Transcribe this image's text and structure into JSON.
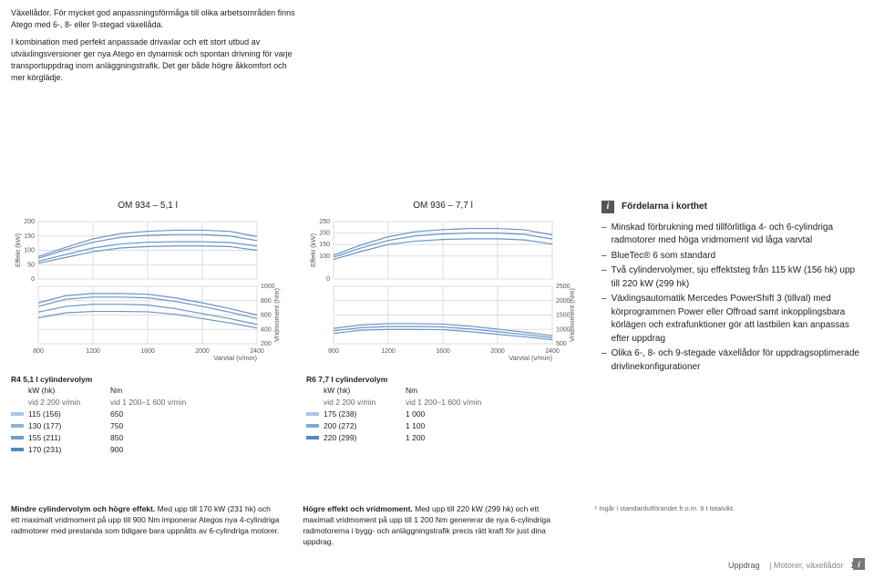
{
  "intro": {
    "para1": "Växellådor. För mycket god anpassningsförmåga till olika arbetsområden finns Atego med 6-, 8- eller 9-stegad växellåda.",
    "para2": "I kombination med perfekt anpassade drivaxlar och ett stort utbud av utväxlingsversioner ger nya Atego en dynamisk och spontan drivning för varje transportuppdrag inom anläggningstrafik. Det ger både högre åkkomfort och mer körglädje."
  },
  "chart1": {
    "title": "OM 934 – 5,1 l",
    "type": "dual-axis-line",
    "y_left_label": "Effekt (kW)",
    "y_right_label": "Vridmoment (Nm)",
    "x_label": "Varvtal (v/min)",
    "background_color": "#ffffff",
    "grid_color": "#dddddd",
    "line_color": "#6894c6",
    "line_width": 1.2,
    "x_ticks": [
      800,
      1200,
      1600,
      2000,
      2400
    ],
    "y_left_ticks": [
      0,
      50,
      100,
      150,
      200
    ],
    "y_left_lim": [
      0,
      200
    ],
    "y_right_ticks": [
      200,
      400,
      600,
      800,
      1000
    ],
    "y_right_lim": [
      200,
      1000
    ],
    "label_fontsize": 7.5,
    "tick_fontsize": 7,
    "power_series": [
      {
        "name": "115",
        "pts": [
          [
            800,
            55
          ],
          [
            1000,
            75
          ],
          [
            1200,
            95
          ],
          [
            1400,
            108
          ],
          [
            1600,
            113
          ],
          [
            1800,
            115
          ],
          [
            2000,
            115
          ],
          [
            2200,
            113
          ],
          [
            2400,
            100
          ]
        ]
      },
      {
        "name": "130",
        "pts": [
          [
            800,
            62
          ],
          [
            1000,
            85
          ],
          [
            1200,
            108
          ],
          [
            1400,
            122
          ],
          [
            1600,
            128
          ],
          [
            1800,
            130
          ],
          [
            2000,
            130
          ],
          [
            2200,
            127
          ],
          [
            2400,
            115
          ]
        ]
      },
      {
        "name": "155",
        "pts": [
          [
            800,
            72
          ],
          [
            1000,
            102
          ],
          [
            1200,
            128
          ],
          [
            1400,
            145
          ],
          [
            1600,
            152
          ],
          [
            1800,
            155
          ],
          [
            2000,
            155
          ],
          [
            2200,
            150
          ],
          [
            2400,
            134
          ]
        ]
      },
      {
        "name": "170",
        "pts": [
          [
            800,
            78
          ],
          [
            1000,
            110
          ],
          [
            1200,
            140
          ],
          [
            1400,
            158
          ],
          [
            1600,
            166
          ],
          [
            1800,
            170
          ],
          [
            2000,
            170
          ],
          [
            2200,
            166
          ],
          [
            2400,
            148
          ]
        ]
      }
    ],
    "torque_series": [
      {
        "name": "115",
        "pts": [
          [
            800,
            560
          ],
          [
            1000,
            630
          ],
          [
            1200,
            650
          ],
          [
            1400,
            650
          ],
          [
            1600,
            645
          ],
          [
            1800,
            610
          ],
          [
            2000,
            550
          ],
          [
            2200,
            490
          ],
          [
            2400,
            420
          ]
        ]
      },
      {
        "name": "130",
        "pts": [
          [
            800,
            640
          ],
          [
            1000,
            720
          ],
          [
            1200,
            750
          ],
          [
            1400,
            750
          ],
          [
            1600,
            740
          ],
          [
            1800,
            690
          ],
          [
            2000,
            620
          ],
          [
            2200,
            550
          ],
          [
            2400,
            470
          ]
        ]
      },
      {
        "name": "155",
        "pts": [
          [
            800,
            720
          ],
          [
            1000,
            820
          ],
          [
            1200,
            850
          ],
          [
            1400,
            850
          ],
          [
            1600,
            840
          ],
          [
            1800,
            790
          ],
          [
            2000,
            720
          ],
          [
            2200,
            640
          ],
          [
            2400,
            550
          ]
        ]
      },
      {
        "name": "170",
        "pts": [
          [
            800,
            770
          ],
          [
            1000,
            870
          ],
          [
            1200,
            900
          ],
          [
            1400,
            900
          ],
          [
            1600,
            890
          ],
          [
            1800,
            840
          ],
          [
            2000,
            770
          ],
          [
            2200,
            690
          ],
          [
            2400,
            600
          ]
        ]
      }
    ],
    "legend": {
      "header": "R4  5,1 l cylindervolym",
      "col1": "kW (hk)",
      "col2": "Nm",
      "sub1": "vid 2 200 v/min",
      "sub2": "vid 1 200–1 600 v/min",
      "rows": [
        [
          "115 (156)",
          "650"
        ],
        [
          "130 (177)",
          "750"
        ],
        [
          "155 (211)",
          "850"
        ],
        [
          "170 (231)",
          "900"
        ]
      ],
      "swatch_colors": [
        "#a9c7e8",
        "#8bb3db",
        "#6d9fce",
        "#4f8bc1"
      ]
    }
  },
  "chart2": {
    "title": "OM 936 – 7,7 l",
    "type": "dual-axis-line",
    "y_left_label": "Effekt (kW)",
    "y_right_label": "Vridmoment (Nm)",
    "x_label": "Varvtal (v/min)",
    "background_color": "#ffffff",
    "grid_color": "#dddddd",
    "line_color": "#6894c6",
    "line_width": 1.2,
    "x_ticks": [
      800,
      1200,
      1600,
      2000,
      2400
    ],
    "y_left_ticks": [
      0,
      100,
      150,
      200,
      250
    ],
    "y_left_lim": [
      0,
      250
    ],
    "y_right_ticks": [
      500,
      1000,
      1500,
      2000,
      2500
    ],
    "y_right_lim": [
      500,
      2500
    ],
    "label_fontsize": 7.5,
    "tick_fontsize": 7,
    "power_series": [
      {
        "name": "175",
        "pts": [
          [
            800,
            85
          ],
          [
            1000,
            120
          ],
          [
            1200,
            150
          ],
          [
            1400,
            165
          ],
          [
            1600,
            172
          ],
          [
            1800,
            175
          ],
          [
            2000,
            175
          ],
          [
            2200,
            170
          ],
          [
            2400,
            152
          ]
        ]
      },
      {
        "name": "200",
        "pts": [
          [
            800,
            95
          ],
          [
            1000,
            135
          ],
          [
            1200,
            168
          ],
          [
            1400,
            188
          ],
          [
            1600,
            196
          ],
          [
            1800,
            200
          ],
          [
            2000,
            200
          ],
          [
            2200,
            194
          ],
          [
            2400,
            174
          ]
        ]
      },
      {
        "name": "220",
        "pts": [
          [
            800,
            104
          ],
          [
            1000,
            148
          ],
          [
            1200,
            184
          ],
          [
            1400,
            206
          ],
          [
            1600,
            215
          ],
          [
            1800,
            220
          ],
          [
            2000,
            220
          ],
          [
            2200,
            214
          ],
          [
            2400,
            192
          ]
        ]
      }
    ],
    "torque_series": [
      {
        "name": "175",
        "pts": [
          [
            800,
            860
          ],
          [
            1000,
            970
          ],
          [
            1200,
            1000
          ],
          [
            1400,
            1000
          ],
          [
            1600,
            990
          ],
          [
            1800,
            920
          ],
          [
            2000,
            830
          ],
          [
            2200,
            740
          ],
          [
            2400,
            640
          ]
        ]
      },
      {
        "name": "200",
        "pts": [
          [
            800,
            950
          ],
          [
            1000,
            1060
          ],
          [
            1200,
            1100
          ],
          [
            1400,
            1100
          ],
          [
            1600,
            1085
          ],
          [
            1800,
            1015
          ],
          [
            2000,
            920
          ],
          [
            2200,
            820
          ],
          [
            2400,
            710
          ]
        ]
      },
      {
        "name": "220",
        "pts": [
          [
            800,
            1035
          ],
          [
            1000,
            1155
          ],
          [
            1200,
            1200
          ],
          [
            1400,
            1200
          ],
          [
            1600,
            1185
          ],
          [
            1800,
            1110
          ],
          [
            2000,
            1010
          ],
          [
            2200,
            900
          ],
          [
            2400,
            780
          ]
        ]
      }
    ],
    "legend": {
      "header": "R6  7,7 l cylindervolym",
      "col1": "kW (hk)",
      "col2": "Nm",
      "sub1": "vid 2 200 v/min",
      "sub2": "vid 1 200–1 600 v/min",
      "rows": [
        [
          "175 (238)",
          "1 000"
        ],
        [
          "200 (272)",
          "1 100"
        ],
        [
          "220 (299)",
          "1 200"
        ]
      ],
      "swatch_colors": [
        "#a9c7e8",
        "#7dacdb",
        "#5189c4"
      ]
    }
  },
  "sidebar": {
    "title": "Fördelarna i korthet",
    "items": [
      "Minskad förbrukning med tillförlitliga 4- och 6-cylindriga radmotorer med höga vridmoment vid låga varvtal",
      "BlueTec® 6 som standard",
      "Två cylindervolymer, sju effektsteg från 115 kW (156 hk) upp till 220 kW (299 hk)",
      "Växlingsautomatik Mercedes PowerShift 3 (tillval) med körprogrammen Power eller Offroad samt inkopplingsbara körlägen och extrafunktioner gör att lastbilen kan anpassas efter uppdrag",
      "Olika 6-, 8- och 9-stegade växellådor för uppdragsoptimerade drivlinekonfigurationer"
    ]
  },
  "bottom": {
    "col1_bold": "Mindre cylindervolym och högre effekt.",
    "col1_text": " Med upp till 170 kW (231 hk) och ett maximalt vridmoment på upp till 900 Nm imponerar Ategos nya 4-cylindriga radmotorer med prestanda som tidigare bara uppnåtts av 6-cylindriga motorer.",
    "col2_bold": "Högre effekt och vridmoment.",
    "col2_text": " Med upp till 220 kW (299 hk) och ett maximalt vridmoment på upp till 1 200 Nm genererar de nya 6-cylindriga radmotorerna i bygg- och anläggningstrafik precis rätt kraft för just dina uppdrag.",
    "col3_text": "¹ Ingår i standardutförandet fr.o.m. 9 t totalvikt."
  },
  "footer": {
    "section": "Uppdrag",
    "subsection": "Motorer, växellådor",
    "page": "13"
  }
}
